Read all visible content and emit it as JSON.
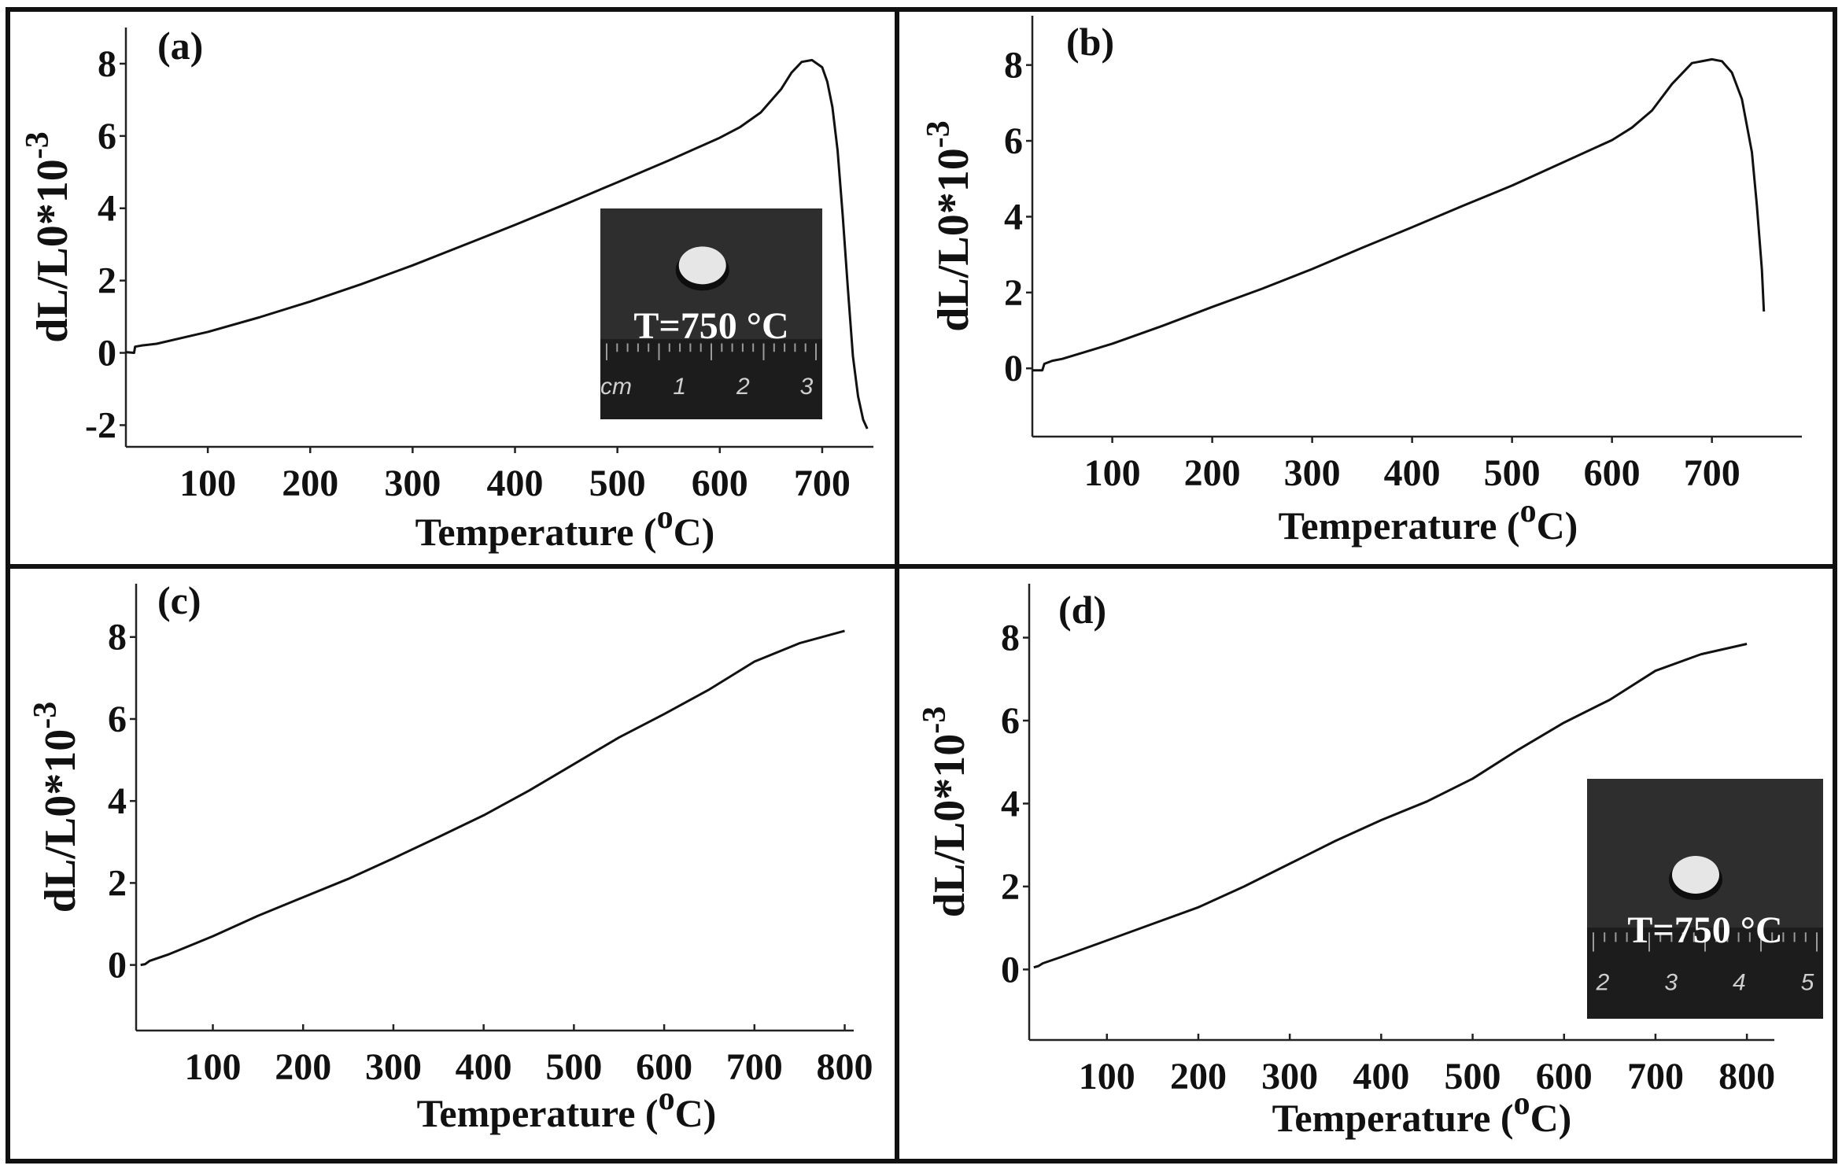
{
  "chart_data": [
    {
      "id": "a",
      "type": "line",
      "panel_label": "(a)",
      "xlabel": "Temperature (",
      "xlabel_sup": "o",
      "xlabel_unit": "C)",
      "ylabel": "dL/L0*10",
      "ylabel_sup": "-3",
      "xlim": [
        20,
        750
      ],
      "ylim": [
        -2.6,
        9
      ],
      "xticks": [
        100,
        200,
        300,
        400,
        500,
        600,
        700
      ],
      "yticks": [
        -2,
        0,
        2,
        4,
        6,
        8
      ],
      "inset": {
        "text": "T=750 °C",
        "ruler_labels": [
          "cm",
          "1",
          "2",
          "3"
        ],
        "position": "bottom-right"
      },
      "series": [
        {
          "x": [
            20,
            28,
            29,
            35,
            50,
            100,
            150,
            200,
            250,
            300,
            350,
            400,
            450,
            500,
            550,
            600,
            620,
            640,
            660,
            670,
            680,
            690,
            700,
            705,
            710,
            715,
            720,
            725,
            730,
            735,
            740,
            744
          ],
          "y": [
            0.02,
            0.0,
            0.17,
            0.2,
            0.25,
            0.58,
            0.98,
            1.42,
            1.9,
            2.42,
            2.98,
            3.54,
            4.12,
            4.72,
            5.32,
            5.95,
            6.25,
            6.65,
            7.3,
            7.75,
            8.05,
            8.1,
            7.9,
            7.5,
            6.8,
            5.6,
            3.8,
            1.8,
            -0.1,
            -1.2,
            -1.85,
            -2.1
          ]
        }
      ]
    },
    {
      "id": "b",
      "type": "line",
      "panel_label": "(b)",
      "xlabel": "Temperature (",
      "xlabel_sup": "o",
      "xlabel_unit": "C)",
      "ylabel": "dL/L0*10",
      "ylabel_sup": "-3",
      "xlim": [
        20,
        790
      ],
      "ylim": [
        -1.8,
        9.3
      ],
      "xticks": [
        100,
        200,
        300,
        400,
        500,
        600,
        700
      ],
      "yticks": [
        0,
        2,
        4,
        6,
        8
      ],
      "series": [
        {
          "x": [
            20,
            30,
            32,
            40,
            50,
            100,
            150,
            200,
            250,
            300,
            350,
            400,
            450,
            500,
            550,
            600,
            620,
            640,
            660,
            680,
            700,
            710,
            720,
            730,
            740,
            745,
            750,
            752
          ],
          "y": [
            -0.05,
            -0.05,
            0.12,
            0.2,
            0.25,
            0.65,
            1.12,
            1.62,
            2.1,
            2.62,
            3.18,
            3.72,
            4.28,
            4.82,
            5.42,
            6.02,
            6.35,
            6.8,
            7.5,
            8.05,
            8.15,
            8.1,
            7.8,
            7.1,
            5.7,
            4.3,
            2.6,
            1.5
          ]
        }
      ]
    },
    {
      "id": "c",
      "type": "line",
      "panel_label": "(c)",
      "xlabel": "Temperature (",
      "xlabel_sup": "o",
      "xlabel_unit": "C)",
      "ylabel": "dL/L0*10",
      "ylabel_sup": "-3",
      "xlim": [
        15,
        810
      ],
      "ylim": [
        -1.6,
        9.3
      ],
      "xticks": [
        100,
        200,
        300,
        400,
        500,
        600,
        700,
        800
      ],
      "yticks": [
        0,
        2,
        4,
        6,
        8
      ],
      "series": [
        {
          "x": [
            20,
            25,
            30,
            50,
            100,
            150,
            200,
            250,
            300,
            350,
            400,
            450,
            500,
            550,
            600,
            650,
            700,
            750,
            800
          ],
          "y": [
            0.0,
            0.02,
            0.1,
            0.25,
            0.7,
            1.2,
            1.65,
            2.1,
            2.6,
            3.12,
            3.65,
            4.25,
            4.9,
            5.55,
            6.12,
            6.72,
            7.4,
            7.85,
            8.15
          ]
        }
      ]
    },
    {
      "id": "d",
      "type": "line",
      "panel_label": "(d)",
      "xlabel": "Temperature (",
      "xlabel_sup": "o",
      "xlabel_unit": "C)",
      "ylabel": "dL/L0*10",
      "ylabel_sup": "-3",
      "xlim": [
        15,
        830
      ],
      "ylim": [
        -1.7,
        9.3
      ],
      "xticks": [
        100,
        200,
        300,
        400,
        500,
        600,
        700,
        800
      ],
      "yticks": [
        0,
        2,
        4,
        6,
        8
      ],
      "inset": {
        "text": "T=750 °C",
        "ruler_labels": [
          "2",
          "3",
          "4",
          "5"
        ],
        "position": "bottom-right"
      },
      "series": [
        {
          "x": [
            20,
            25,
            30,
            50,
            100,
            150,
            200,
            250,
            300,
            350,
            400,
            450,
            500,
            550,
            600,
            650,
            700,
            750,
            800
          ],
          "y": [
            0.05,
            0.08,
            0.15,
            0.3,
            0.7,
            1.1,
            1.5,
            2.0,
            2.55,
            3.1,
            3.6,
            4.05,
            4.6,
            5.3,
            5.95,
            6.5,
            7.2,
            7.6,
            7.85
          ]
        }
      ]
    }
  ]
}
